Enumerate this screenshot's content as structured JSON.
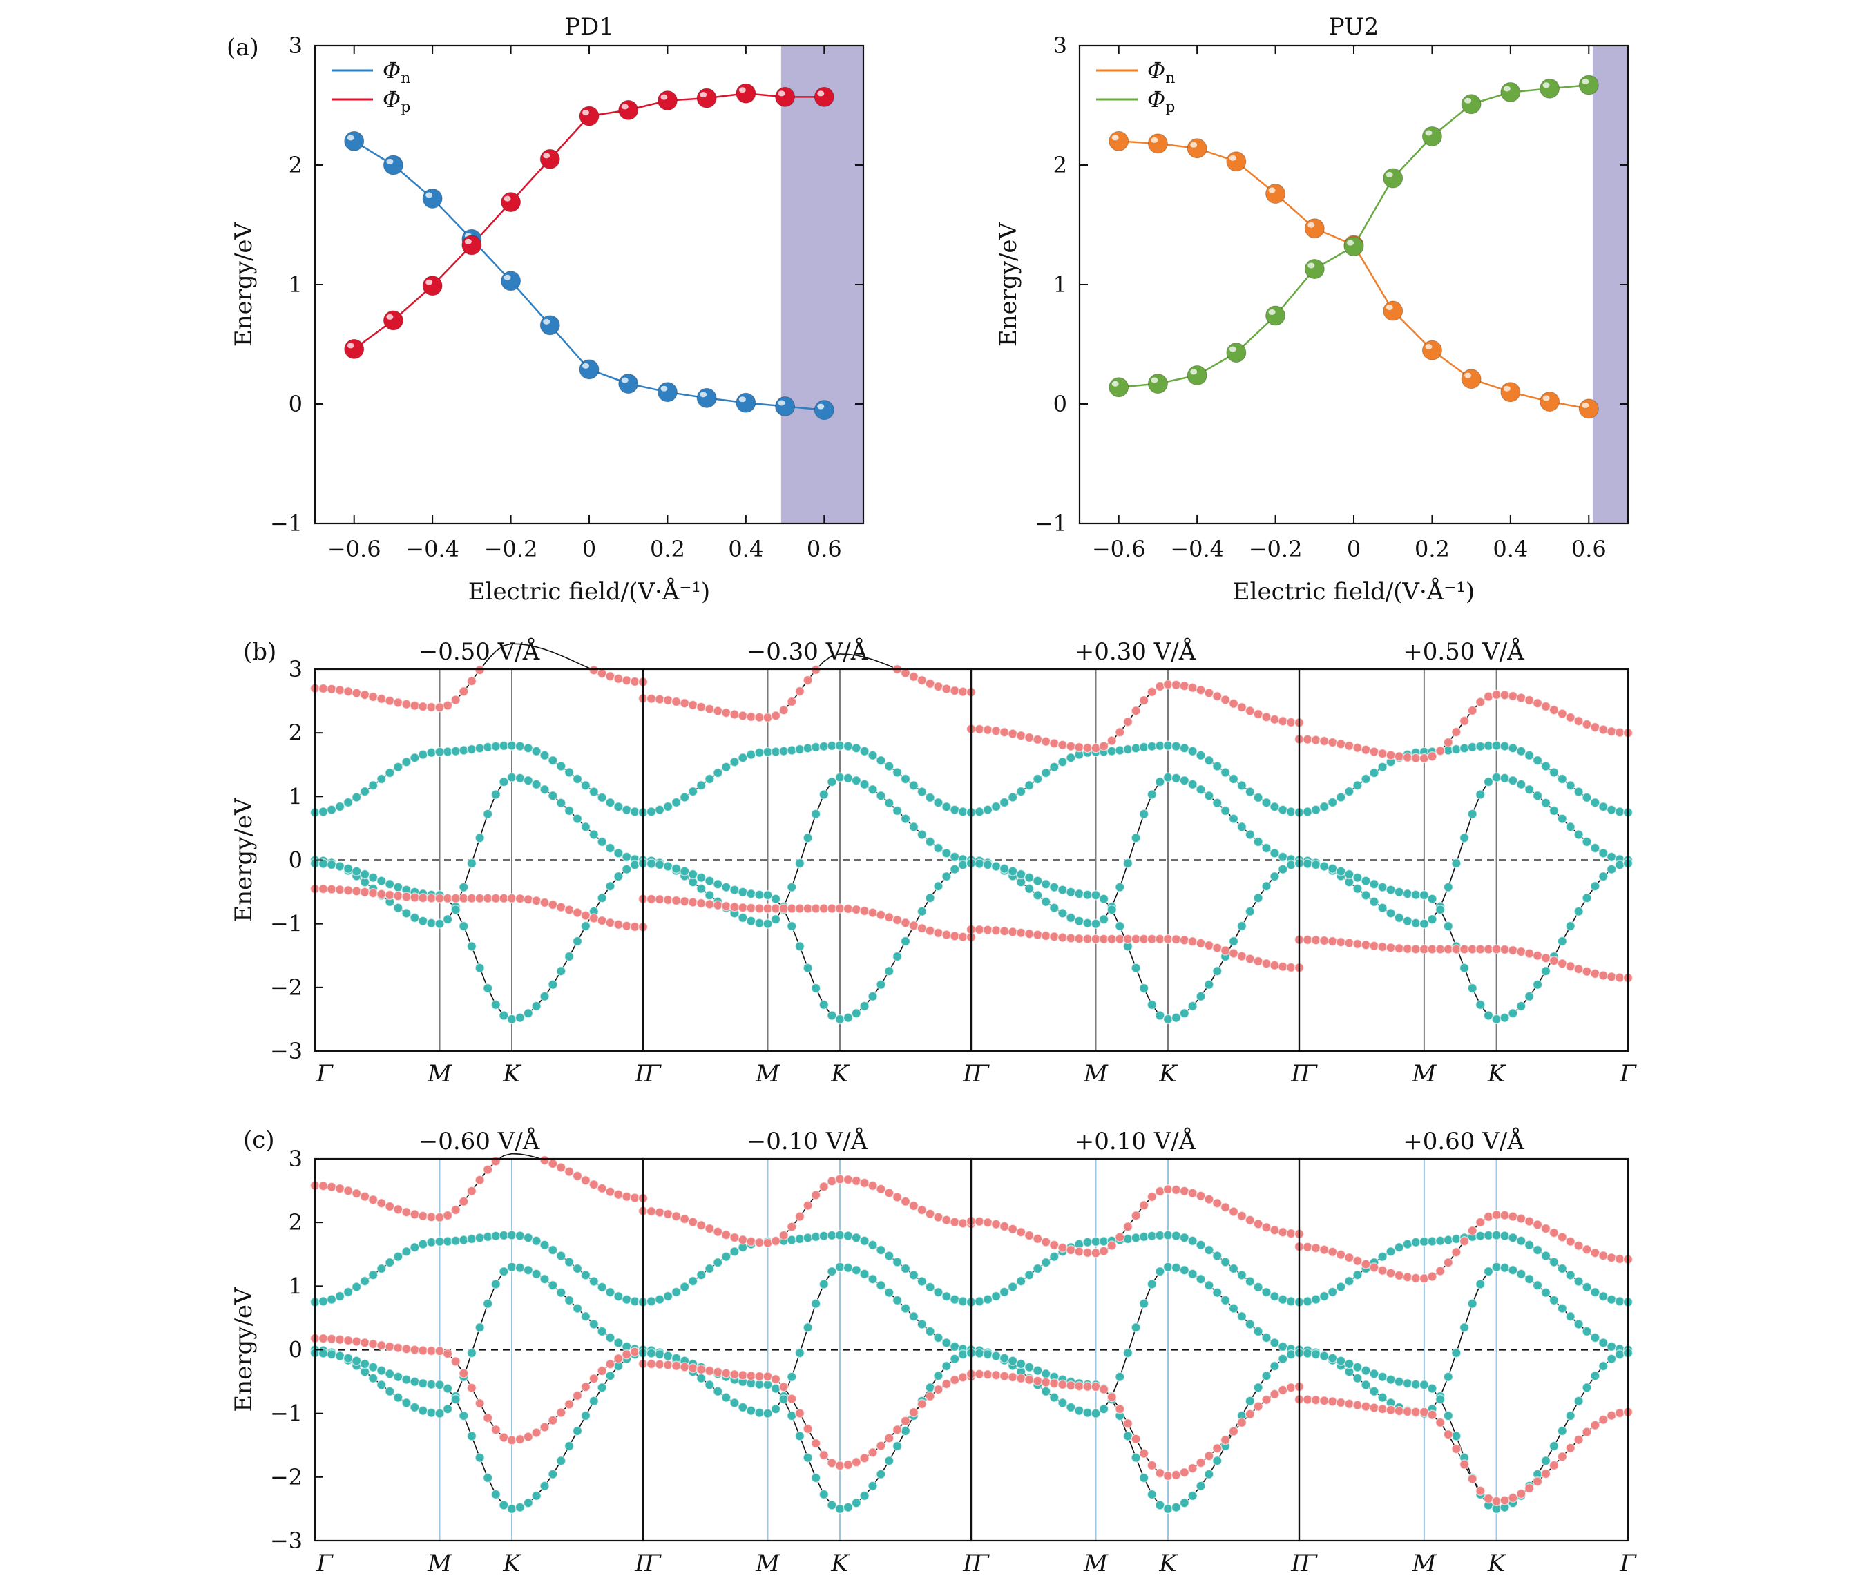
{
  "figure": {
    "panel_labels": [
      "(a)",
      "(b)",
      "(c)"
    ],
    "colors": {
      "phi_n_pd1": "#2f7fc1",
      "phi_p_pd1": "#d9152e",
      "phi_n_pu2": "#ef7f2a",
      "phi_p_pu2": "#6aa842",
      "shade": "#b8b4d8",
      "band_teal": "#3bb6b0",
      "band_pink": "#ee8282"
    }
  },
  "chart_data": [
    {
      "type": "line",
      "title": "PD1",
      "xlabel": "Electric field/(V·Å⁻¹)",
      "ylabel": "Energy/eV",
      "xlim": [
        -0.7,
        0.7
      ],
      "ylim": [
        -1,
        3
      ],
      "xticks": [
        "−0.6",
        "−0.4",
        "−0.2",
        "0",
        "0.2",
        "0.4",
        "0.6"
      ],
      "yticks": [
        "−1",
        "0",
        "1",
        "2",
        "3"
      ],
      "x": [
        -0.6,
        -0.5,
        -0.4,
        -0.3,
        -0.2,
        -0.1,
        0,
        0.1,
        0.2,
        0.3,
        0.4,
        0.5,
        0.6
      ],
      "series": [
        {
          "name": "Φn",
          "color": "#2f7fc1",
          "values": [
            2.2,
            2.0,
            1.72,
            1.38,
            1.03,
            0.66,
            0.29,
            0.17,
            0.1,
            0.05,
            0.01,
            -0.02,
            -0.05
          ]
        },
        {
          "name": "Φp",
          "color": "#d9152e",
          "values": [
            0.46,
            0.7,
            0.99,
            1.33,
            1.69,
            2.05,
            2.41,
            2.46,
            2.54,
            2.56,
            2.6,
            2.57,
            2.57
          ]
        }
      ],
      "shaded_x_range": [
        0.49,
        0.7
      ],
      "legend": "top-left"
    },
    {
      "type": "line",
      "title": "PU2",
      "xlabel": "Electric field/(V·Å⁻¹)",
      "ylabel": "Energy/eV",
      "xlim": [
        -0.7,
        0.7
      ],
      "ylim": [
        -1,
        3
      ],
      "xticks": [
        "−0.6",
        "−0.4",
        "−0.2",
        "0",
        "0.2",
        "0.4",
        "0.6"
      ],
      "yticks": [
        "−1",
        "0",
        "1",
        "2",
        "3"
      ],
      "x": [
        -0.6,
        -0.5,
        -0.4,
        -0.3,
        -0.2,
        -0.1,
        0,
        0.1,
        0.2,
        0.3,
        0.4,
        0.5,
        0.6
      ],
      "series": [
        {
          "name": "Φn",
          "color": "#ef7f2a",
          "values": [
            2.2,
            2.18,
            2.14,
            2.03,
            1.76,
            1.47,
            1.33,
            0.78,
            0.45,
            0.21,
            0.1,
            0.02,
            -0.04
          ]
        },
        {
          "name": "Φp",
          "color": "#6aa842",
          "values": [
            0.14,
            0.17,
            0.24,
            0.43,
            0.74,
            1.13,
            1.32,
            1.89,
            2.24,
            2.51,
            2.61,
            2.64,
            2.67
          ]
        }
      ],
      "shaded_x_range": [
        0.61,
        0.7
      ],
      "legend": "top-left"
    },
    {
      "type": "line",
      "panel": "(b)",
      "ylabel": "Energy/eV",
      "ylim": [
        -3,
        3
      ],
      "yticks": [
        "−3",
        "−2",
        "−1",
        "0",
        "1",
        "2",
        "3"
      ],
      "kpath": [
        "Γ",
        "M",
        "K",
        "Γ"
      ],
      "subplots": [
        {
          "title": "−0.50 V/Å",
          "field": -0.5
        },
        {
          "title": "−0.30 V/Å",
          "field": -0.3
        },
        {
          "title": "+0.30 V/Å",
          "field": 0.3
        },
        {
          "title": "+0.50 V/Å",
          "field": 0.5
        }
      ],
      "series": [
        {
          "name": "",
          "color": "#3bb6b0",
          "values": [
            0.75,
            1.7,
            1.8,
            0.75
          ]
        },
        {
          "name": "",
          "color": "#3bb6b0",
          "values": [
            0.0,
            -1.0,
            1.3,
            0.0
          ]
        },
        {
          "name": "",
          "color": "#3bb6b0",
          "values": [
            -0.05,
            -0.55,
            -2.5,
            -0.05
          ]
        },
        {
          "name": "",
          "color": "#ee8282",
          "values": [
            2.3,
            2.0,
            3.0,
            2.4
          ]
        },
        {
          "name": "",
          "color": "#ee8282",
          "values": [
            -0.85,
            -1.0,
            -1.0,
            -1.45
          ]
        }
      ],
      "fermi_level": 0
    },
    {
      "type": "line",
      "panel": "(c)",
      "ylabel": "Energy/eV",
      "ylim": [
        -3,
        3
      ],
      "yticks": [
        "−3",
        "−2",
        "−1",
        "0",
        "1",
        "2",
        "3"
      ],
      "kpath": [
        "Γ",
        "M",
        "K",
        "Γ"
      ],
      "subplots": [
        {
          "title": "−0.60 V/Å",
          "field": -0.6
        },
        {
          "title": "−0.10 V/Å",
          "field": -0.1
        },
        {
          "title": "+0.10 V/Å",
          "field": 0.1
        },
        {
          "title": "+0.60 V/Å",
          "field": 0.6
        }
      ],
      "series": [
        {
          "name": "",
          "color": "#3bb6b0",
          "values": [
            0.75,
            1.7,
            1.8,
            0.75
          ]
        },
        {
          "name": "",
          "color": "#3bb6b0",
          "values": [
            0.0,
            -1.0,
            1.3,
            0.0
          ]
        },
        {
          "name": "",
          "color": "#3bb6b0",
          "values": [
            -0.05,
            -0.55,
            -2.5,
            -0.05
          ]
        },
        {
          "name": "",
          "color": "#ee8282",
          "values": [
            2.1,
            1.6,
            2.6,
            1.9
          ]
        },
        {
          "name": "",
          "color": "#ee8282",
          "values": [
            -0.3,
            -0.5,
            -1.9,
            -0.5
          ]
        }
      ],
      "fermi_level": 0
    }
  ]
}
